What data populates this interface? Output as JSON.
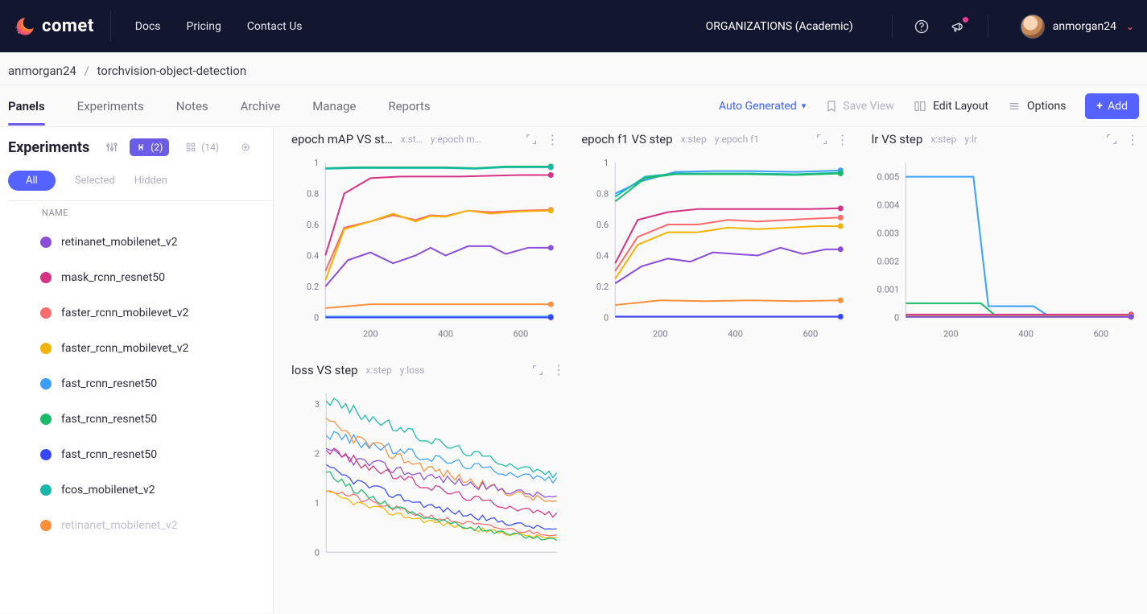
{
  "header": {
    "brand": "comet",
    "nav": [
      "Docs",
      "Pricing",
      "Contact Us"
    ],
    "org_label": "ORGANIZATIONS (Academic)",
    "user": "anmorgan24"
  },
  "breadcrumb": {
    "user": "anmorgan24",
    "project": "torchvision-object-detection"
  },
  "tabs": {
    "items": [
      "Panels",
      "Experiments",
      "Notes",
      "Archive",
      "Manage",
      "Reports"
    ],
    "active_index": 0,
    "auto_generated": "Auto Generated",
    "save_view": "Save View",
    "edit_layout": "Edit Layout",
    "options": "Options",
    "add": "Add"
  },
  "sidebar": {
    "title": "Experiments",
    "filter_count": "(2)",
    "grid_count": "(14)",
    "tabs": {
      "all": "All",
      "selected": "Selected",
      "hidden": "Hidden"
    },
    "name_header": "NAME",
    "experiments": [
      {
        "label": "retinanet_mobilenet_v2",
        "color": "#8a4ed8"
      },
      {
        "label": "mask_rcnn_resnet50",
        "color": "#d63384"
      },
      {
        "label": "faster_rcnn_mobilevet_v2",
        "color": "#ff6b6b"
      },
      {
        "label": "faster_rcnn_mobilevet_v2",
        "color": "#f5b301"
      },
      {
        "label": "fast_rcnn_resnet50",
        "color": "#3aa0ff"
      },
      {
        "label": "fast_rcnn_resnet50",
        "color": "#1abc6c"
      },
      {
        "label": "fast_rcnn_resnet50",
        "color": "#3647ff"
      },
      {
        "label": "fcos_mobilenet_v2",
        "color": "#18b8a8"
      },
      {
        "label": "retinanet_mobilenet_v2",
        "color": "#ff8f3a",
        "faded": true
      }
    ]
  },
  "palette": {
    "purple": "#8a4ed8",
    "pink": "#d63384",
    "red": "#ff6b6b",
    "yellow": "#f5b301",
    "blue": "#3aa0ff",
    "green": "#1abc6c",
    "indigo": "#3647ff",
    "teal": "#18b8a8",
    "orange": "#ff8f3a"
  },
  "panels": {
    "map": {
      "title": "epoch mAP VS st…",
      "x_label": "x:st…",
      "y_label": "y:epoch m…",
      "x_ticks": [
        200,
        400,
        600
      ],
      "y_ticks": [
        0,
        0.2,
        0.4,
        0.6,
        0.8,
        1
      ],
      "xlim": [
        80,
        680
      ],
      "ylim": [
        0,
        1
      ],
      "series": [
        {
          "color_key": "green",
          "pts": [
            [
              80,
              0.965
            ],
            [
              160,
              0.97
            ],
            [
              240,
              0.97
            ],
            [
              320,
              0.97
            ],
            [
              400,
              0.97
            ],
            [
              480,
              0.965
            ],
            [
              560,
              0.975
            ],
            [
              640,
              0.975
            ],
            [
              680,
              0.975
            ]
          ]
        },
        {
          "color_key": "teal",
          "pts": [
            [
              80,
              0.96
            ],
            [
              160,
              0.965
            ],
            [
              240,
              0.965
            ],
            [
              320,
              0.965
            ],
            [
              400,
              0.965
            ],
            [
              480,
              0.96
            ],
            [
              560,
              0.97
            ],
            [
              640,
              0.97
            ],
            [
              680,
              0.97
            ]
          ]
        },
        {
          "color_key": "pink",
          "pts": [
            [
              80,
              0.4
            ],
            [
              130,
              0.8
            ],
            [
              200,
              0.9
            ],
            [
              280,
              0.91
            ],
            [
              360,
              0.91
            ],
            [
              440,
              0.91
            ],
            [
              520,
              0.915
            ],
            [
              600,
              0.92
            ],
            [
              680,
              0.92
            ]
          ]
        },
        {
          "color_key": "red",
          "pts": [
            [
              80,
              0.3
            ],
            [
              130,
              0.58
            ],
            [
              200,
              0.62
            ],
            [
              260,
              0.66
            ],
            [
              320,
              0.63
            ],
            [
              360,
              0.66
            ],
            [
              400,
              0.655
            ],
            [
              460,
              0.69
            ],
            [
              520,
              0.68
            ],
            [
              600,
              0.69
            ],
            [
              680,
              0.695
            ]
          ]
        },
        {
          "color_key": "yellow",
          "pts": [
            [
              80,
              0.24
            ],
            [
              130,
              0.57
            ],
            [
              200,
              0.62
            ],
            [
              260,
              0.67
            ],
            [
              320,
              0.62
            ],
            [
              360,
              0.655
            ],
            [
              400,
              0.65
            ],
            [
              460,
              0.69
            ],
            [
              520,
              0.67
            ],
            [
              600,
              0.685
            ],
            [
              680,
              0.69
            ]
          ]
        },
        {
          "color_key": "purple",
          "pts": [
            [
              80,
              0.2
            ],
            [
              140,
              0.37
            ],
            [
              200,
              0.42
            ],
            [
              260,
              0.35
            ],
            [
              320,
              0.4
            ],
            [
              360,
              0.45
            ],
            [
              400,
              0.4
            ],
            [
              460,
              0.46
            ],
            [
              520,
              0.46
            ],
            [
              560,
              0.41
            ],
            [
              620,
              0.45
            ],
            [
              680,
              0.45
            ]
          ]
        },
        {
          "color_key": "orange",
          "pts": [
            [
              80,
              0.06
            ],
            [
              200,
              0.085
            ],
            [
              320,
              0.085
            ],
            [
              440,
              0.085
            ],
            [
              560,
              0.085
            ],
            [
              680,
              0.085
            ]
          ]
        },
        {
          "color_key": "blue",
          "pts": [
            [
              80,
              0.005
            ],
            [
              200,
              0.005
            ],
            [
              320,
              0.005
            ],
            [
              440,
              0.005
            ],
            [
              560,
              0.005
            ],
            [
              680,
              0.005
            ]
          ]
        },
        {
          "color_key": "indigo",
          "pts": [
            [
              80,
              0.0
            ],
            [
              200,
              0.0
            ],
            [
              320,
              0.0
            ],
            [
              440,
              0.0
            ],
            [
              560,
              0.0
            ],
            [
              680,
              0.0
            ]
          ]
        }
      ]
    },
    "f1": {
      "title": "epoch f1 VS step",
      "x_label": "x:step",
      "y_label": "y:epoch f1",
      "x_ticks": [
        200,
        400,
        600
      ],
      "y_ticks": [
        0,
        0.2,
        0.4,
        0.6,
        0.8,
        1
      ],
      "xlim": [
        80,
        680
      ],
      "ylim": [
        0,
        1
      ],
      "series": [
        {
          "color_key": "blue",
          "pts": [
            [
              80,
              0.8
            ],
            [
              150,
              0.88
            ],
            [
              240,
              0.94
            ],
            [
              340,
              0.945
            ],
            [
              440,
              0.945
            ],
            [
              560,
              0.94
            ],
            [
              680,
              0.95
            ]
          ]
        },
        {
          "color_key": "teal",
          "pts": [
            [
              80,
              0.78
            ],
            [
              160,
              0.91
            ],
            [
              240,
              0.93
            ],
            [
              340,
              0.93
            ],
            [
              440,
              0.93
            ],
            [
              560,
              0.925
            ],
            [
              680,
              0.935
            ]
          ]
        },
        {
          "color_key": "green",
          "pts": [
            [
              80,
              0.75
            ],
            [
              160,
              0.9
            ],
            [
              240,
              0.925
            ],
            [
              340,
              0.925
            ],
            [
              440,
              0.925
            ],
            [
              560,
              0.92
            ],
            [
              680,
              0.93
            ]
          ]
        },
        {
          "color_key": "pink",
          "pts": [
            [
              80,
              0.35
            ],
            [
              140,
              0.63
            ],
            [
              220,
              0.68
            ],
            [
              300,
              0.7
            ],
            [
              400,
              0.7
            ],
            [
              500,
              0.7
            ],
            [
              600,
              0.7
            ],
            [
              680,
              0.705
            ]
          ]
        },
        {
          "color_key": "red",
          "pts": [
            [
              80,
              0.3
            ],
            [
              140,
              0.52
            ],
            [
              220,
              0.6
            ],
            [
              300,
              0.6
            ],
            [
              380,
              0.63
            ],
            [
              460,
              0.62
            ],
            [
              540,
              0.63
            ],
            [
              620,
              0.64
            ],
            [
              680,
              0.645
            ]
          ]
        },
        {
          "color_key": "yellow",
          "pts": [
            [
              80,
              0.25
            ],
            [
              140,
              0.47
            ],
            [
              220,
              0.55
            ],
            [
              300,
              0.55
            ],
            [
              380,
              0.58
            ],
            [
              460,
              0.57
            ],
            [
              540,
              0.58
            ],
            [
              620,
              0.59
            ],
            [
              680,
              0.59
            ]
          ]
        },
        {
          "color_key": "purple",
          "pts": [
            [
              80,
              0.22
            ],
            [
              150,
              0.33
            ],
            [
              220,
              0.38
            ],
            [
              280,
              0.36
            ],
            [
              340,
              0.42
            ],
            [
              400,
              0.41
            ],
            [
              460,
              0.4
            ],
            [
              520,
              0.45
            ],
            [
              580,
              0.41
            ],
            [
              640,
              0.44
            ],
            [
              680,
              0.44
            ]
          ]
        },
        {
          "color_key": "orange",
          "pts": [
            [
              80,
              0.08
            ],
            [
              200,
              0.11
            ],
            [
              320,
              0.105
            ],
            [
              440,
              0.11
            ],
            [
              560,
              0.105
            ],
            [
              680,
              0.11
            ]
          ]
        },
        {
          "color_key": "indigo",
          "pts": [
            [
              80,
              0.005
            ],
            [
              300,
              0.005
            ],
            [
              500,
              0.005
            ],
            [
              680,
              0.005
            ]
          ]
        }
      ]
    },
    "lr": {
      "title": "lr VS step",
      "x_label": "x:step",
      "y_label": "y:lr",
      "x_ticks": [
        200,
        400,
        600
      ],
      "y_ticks": [
        0,
        0.001,
        0.002,
        0.003,
        0.004,
        0.005
      ],
      "xlim": [
        80,
        680
      ],
      "ylim": [
        0,
        0.0055
      ],
      "series": [
        {
          "color_key": "blue",
          "pts": [
            [
              80,
              0.005
            ],
            [
              260,
              0.005
            ],
            [
              300,
              0.0004
            ],
            [
              420,
              0.0004
            ],
            [
              460,
              5e-05
            ],
            [
              680,
              5e-05
            ]
          ]
        },
        {
          "color_key": "green",
          "pts": [
            [
              80,
              0.0005
            ],
            [
              280,
              0.0005
            ],
            [
              320,
              5e-05
            ],
            [
              680,
              5e-05
            ]
          ]
        },
        {
          "color_key": "pink",
          "pts": [
            [
              80,
              0.0001
            ],
            [
              680,
              0.0001
            ]
          ]
        },
        {
          "color_key": "orange",
          "pts": [
            [
              80,
              5e-05
            ],
            [
              680,
              5e-05
            ]
          ]
        },
        {
          "color_key": "teal",
          "pts": [
            [
              80,
              2.5e-05
            ],
            [
              680,
              2.5e-05
            ]
          ]
        },
        {
          "color_key": "purple",
          "pts": [
            [
              80,
              2e-05
            ],
            [
              680,
              2e-05
            ]
          ]
        }
      ]
    },
    "loss": {
      "title": "loss VS step",
      "x_label": "x:step",
      "y_label": "y:loss",
      "x_ticks": [],
      "y_ticks": [
        0,
        1,
        2,
        3
      ],
      "xlim": [
        80,
        680
      ],
      "ylim": [
        0,
        3.2
      ],
      "noisy": true,
      "series": [
        {
          "color_key": "teal",
          "base": [
            [
              80,
              3.1
            ],
            [
              680,
              1.55
            ]
          ],
          "amp": 0.25
        },
        {
          "color_key": "blue",
          "base": [
            [
              80,
              2.4
            ],
            [
              680,
              1.45
            ]
          ],
          "amp": 0.25
        },
        {
          "color_key": "orange",
          "base": [
            [
              80,
              2.6
            ],
            [
              680,
              1.0
            ]
          ],
          "amp": 0.28
        },
        {
          "color_key": "purple",
          "base": [
            [
              80,
              2.0
            ],
            [
              680,
              1.1
            ]
          ],
          "amp": 0.25
        },
        {
          "color_key": "pink",
          "base": [
            [
              80,
              2.1
            ],
            [
              680,
              0.75
            ]
          ],
          "amp": 0.22
        },
        {
          "color_key": "indigo",
          "base": [
            [
              80,
              1.7
            ],
            [
              680,
              0.45
            ]
          ],
          "amp": 0.18
        },
        {
          "color_key": "red",
          "base": [
            [
              80,
              1.3
            ],
            [
              680,
              0.35
            ]
          ],
          "amp": 0.15
        },
        {
          "color_key": "yellow",
          "base": [
            [
              80,
              1.2
            ],
            [
              680,
              0.28
            ]
          ],
          "amp": 0.14
        },
        {
          "color_key": "green",
          "base": [
            [
              80,
              1.6
            ],
            [
              680,
              0.25
            ]
          ],
          "amp": 0.16
        }
      ]
    }
  },
  "chart_style": {
    "background": "#ffffff",
    "axis_color": "#c9c8d6",
    "grid_color": "#e8e7ef",
    "tick_font_size": 11,
    "tick_color": "#7a7889",
    "series_width": 2,
    "noisy_series_width": 1.2,
    "endpoint_radius": 3.5
  }
}
